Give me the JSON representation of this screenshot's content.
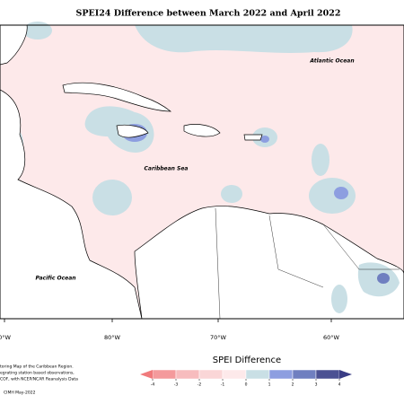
{
  "title": "SPEI24 Difference between March 2022 and April 2022",
  "labels": {
    "atlantic": "Atlantic Ocean",
    "caribbean": "Caribbean Sea",
    "pacific": "Pacific Ocean"
  },
  "longitudes": [
    "0°W",
    "80°W",
    "70°W",
    "60°W"
  ],
  "legend": {
    "title": "SPEI Difference",
    "ticks": [
      -4,
      -3,
      -2,
      -1,
      0,
      1,
      2,
      3,
      4
    ],
    "colors": [
      "#f49a9c",
      "#f7bcbe",
      "#fad6d7",
      "#fde9ea",
      "#c9dfe5",
      "#8d9ee0",
      "#6f7fc0",
      "#4b5193"
    ],
    "under": "#f07a7c",
    "over": "#3a3d85"
  },
  "footnote": [
    "toring Map of the Caribbean Region.",
    "egrating station based observations,",
    "COF, with NCEP/NCAR Reanalysis Data"
  ],
  "credit": "CIMH May-2022"
}
